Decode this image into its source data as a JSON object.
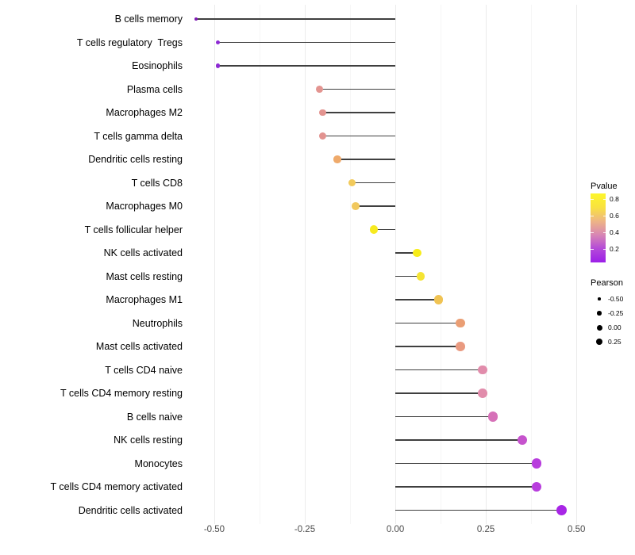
{
  "chart_data": {
    "type": "scatter",
    "variant": "lollipop",
    "title": "",
    "xlabel": "",
    "ylabel": "",
    "grid": true,
    "xlim": [
      -0.57,
      0.539
    ],
    "x_major_ticks": [
      -0.5,
      -0.25,
      0,
      0.25,
      0.5
    ],
    "x_minor_ticks": [
      -0.375,
      -0.125,
      0.125,
      0.375
    ],
    "x_tick_labels": [
      "-0.50",
      "-0.25",
      "0.00",
      "0.25",
      "0.50"
    ],
    "stem_color": "#3f3f3f",
    "points": [
      {
        "label": "B cells memory",
        "pearson": -0.55,
        "color": "#7d17b3"
      },
      {
        "label": "T cells regulatory  Tregs",
        "pearson": -0.49,
        "color": "#8d2ad3"
      },
      {
        "label": "Eosinophils",
        "pearson": -0.49,
        "color": "#8d2ad3"
      },
      {
        "label": "Plasma cells",
        "pearson": -0.21,
        "color": "#e39490"
      },
      {
        "label": "Macrophages M2",
        "pearson": -0.2,
        "color": "#e39490"
      },
      {
        "label": "T cells gamma delta",
        "pearson": -0.2,
        "color": "#e29390"
      },
      {
        "label": "Dendritic cells resting",
        "pearson": -0.16,
        "color": "#efaa6b"
      },
      {
        "label": "T cells CD8",
        "pearson": -0.12,
        "color": "#f2ca5b"
      },
      {
        "label": "Macrophages M0",
        "pearson": -0.11,
        "color": "#f1c85d"
      },
      {
        "label": "T cells follicular helper",
        "pearson": -0.06,
        "color": "#f7ea1f"
      },
      {
        "label": "NK cells activated",
        "pearson": 0.06,
        "color": "#f7ec19"
      },
      {
        "label": "Mast cells resting",
        "pearson": 0.07,
        "color": "#f5e433"
      },
      {
        "label": "Macrophages M1",
        "pearson": 0.12,
        "color": "#f0c353"
      },
      {
        "label": "Neutrophils",
        "pearson": 0.18,
        "color": "#ea9e74"
      },
      {
        "label": "Mast cells activated",
        "pearson": 0.18,
        "color": "#e99a80"
      },
      {
        "label": "T cells CD4 naive",
        "pearson": 0.24,
        "color": "#e18cab"
      },
      {
        "label": "T cells CD4 memory resting",
        "pearson": 0.24,
        "color": "#e18cab"
      },
      {
        "label": "B cells naive",
        "pearson": 0.27,
        "color": "#d671b8"
      },
      {
        "label": "NK cells resting",
        "pearson": 0.35,
        "color": "#c653cd"
      },
      {
        "label": "Monocytes",
        "pearson": 0.39,
        "color": "#b83ddd"
      },
      {
        "label": "T cells CD4 memory activated",
        "pearson": 0.39,
        "color": "#b83ddd"
      },
      {
        "label": "Dendritic cells activated",
        "pearson": 0.46,
        "color": "#a826e6"
      }
    ],
    "legend_pvalue": {
      "title": "Pvalue",
      "ticks": [
        "0.8",
        "0.6",
        "0.4",
        "0.2"
      ],
      "gradient_bottom_to_top": [
        "#9c1fe8",
        "#b44ad8",
        "#d886b4",
        "#eeb585",
        "#f9e23f",
        "#fdf62b"
      ]
    },
    "legend_pearson": {
      "title": "Pearson",
      "entries": [
        "-0.50",
        "-0.25",
        "0.00",
        "0.25"
      ],
      "dot_color": "#000000"
    }
  }
}
